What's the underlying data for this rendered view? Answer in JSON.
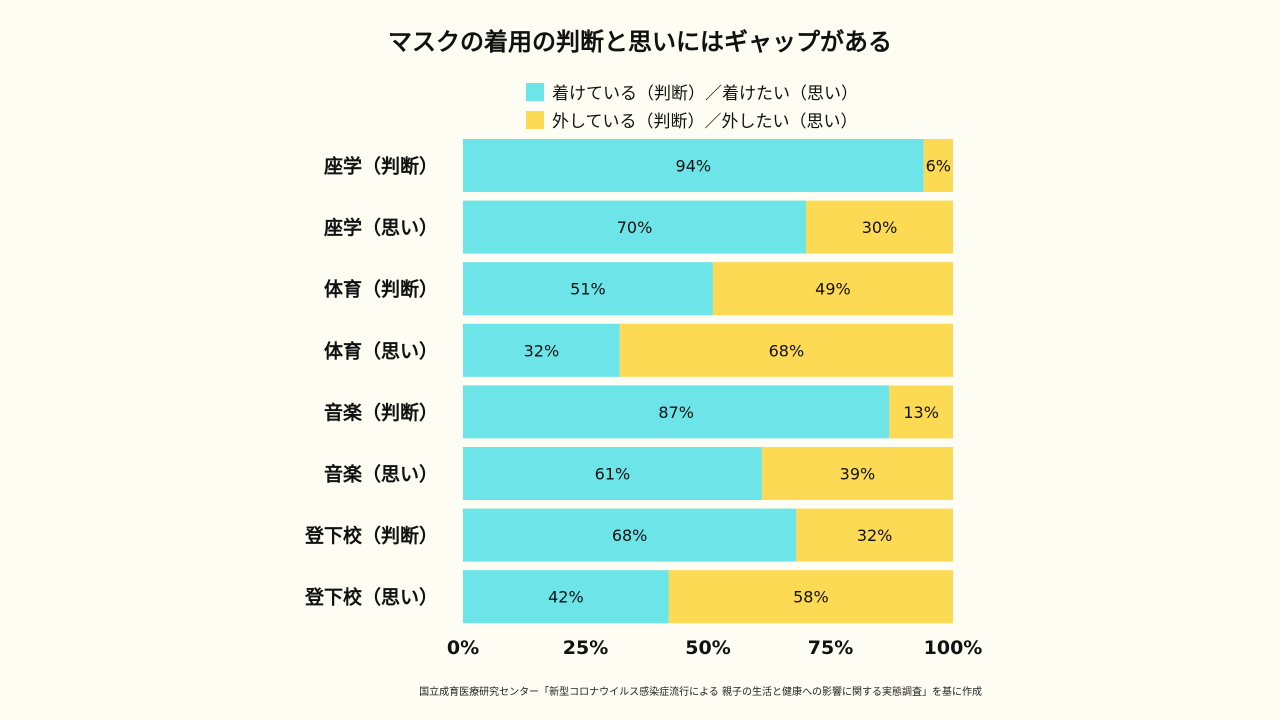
{
  "chart_data": {
    "type": "bar",
    "orientation": "horizontal",
    "stacked": true,
    "title": "マスクの着用の判断と思いにはギャップがある",
    "categories": [
      "座学（判断）",
      "座学（思い）",
      "体育（判断）",
      "体育（思い）",
      "音楽（判断）",
      "音楽（思い）",
      "登下校（判断）",
      "登下校（思い）"
    ],
    "series": [
      {
        "name": "着けている（判断）／着けたい（思い）",
        "color": "#6ce4e8",
        "values": [
          94,
          70,
          51,
          32,
          87,
          61,
          68,
          42
        ]
      },
      {
        "name": "外している（判断）／外したい（思い）",
        "color": "#fcda54",
        "values": [
          6,
          30,
          49,
          68,
          13,
          39,
          32,
          58
        ]
      }
    ],
    "value_suffix": "%",
    "xlim": [
      0,
      100
    ],
    "xticks": [
      "0%",
      "25%",
      "50%",
      "75%",
      "100%"
    ],
    "xtick_values": [
      0,
      25,
      50,
      75,
      100
    ],
    "legend_position": "top",
    "grid": false
  },
  "source_note": "国立成育医療研究センター「新型コロナウイルス感染症流行による 親子の生活と健康への影響に関する実態調査」を基に作成"
}
